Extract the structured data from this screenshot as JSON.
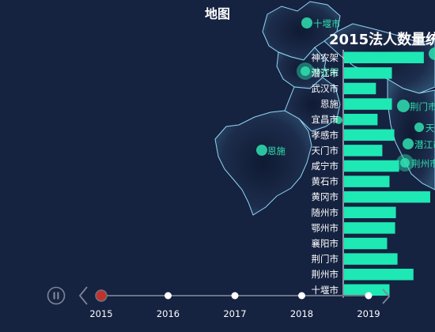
{
  "map": {
    "title": "地图",
    "markers": [
      {
        "name": "十堰市"
      },
      {
        "name": "神农架"
      },
      {
        "name": "恩施"
      },
      {
        "name": "荆门市"
      },
      {
        "name": "天"
      },
      {
        "name": "潜江市"
      },
      {
        "name": "荆州市"
      }
    ]
  },
  "chart_data": {
    "type": "bar",
    "title": "2015法人数量统",
    "categories": [
      "神农架",
      "潜江市",
      "武汉市",
      "恩施",
      "宜昌市",
      "孝感市",
      "天门市",
      "咸宁市",
      "黄石市",
      "黄冈市",
      "随州市",
      "鄂州市",
      "襄阳市",
      "荆门市",
      "荆州市",
      "十堰市"
    ],
    "values": [
      100,
      60,
      40,
      60,
      42,
      63,
      48,
      69,
      57,
      108,
      65,
      64,
      54,
      67,
      87,
      57
    ],
    "xlim": [
      0,
      115
    ],
    "bar_color": "#1ee8b4"
  },
  "timeline": {
    "years": [
      "2015",
      "2016",
      "2017",
      "2018",
      "2019"
    ],
    "current_index": 0,
    "active_color": "#c0332d",
    "prev_label": "‹",
    "next_label": "›"
  }
}
